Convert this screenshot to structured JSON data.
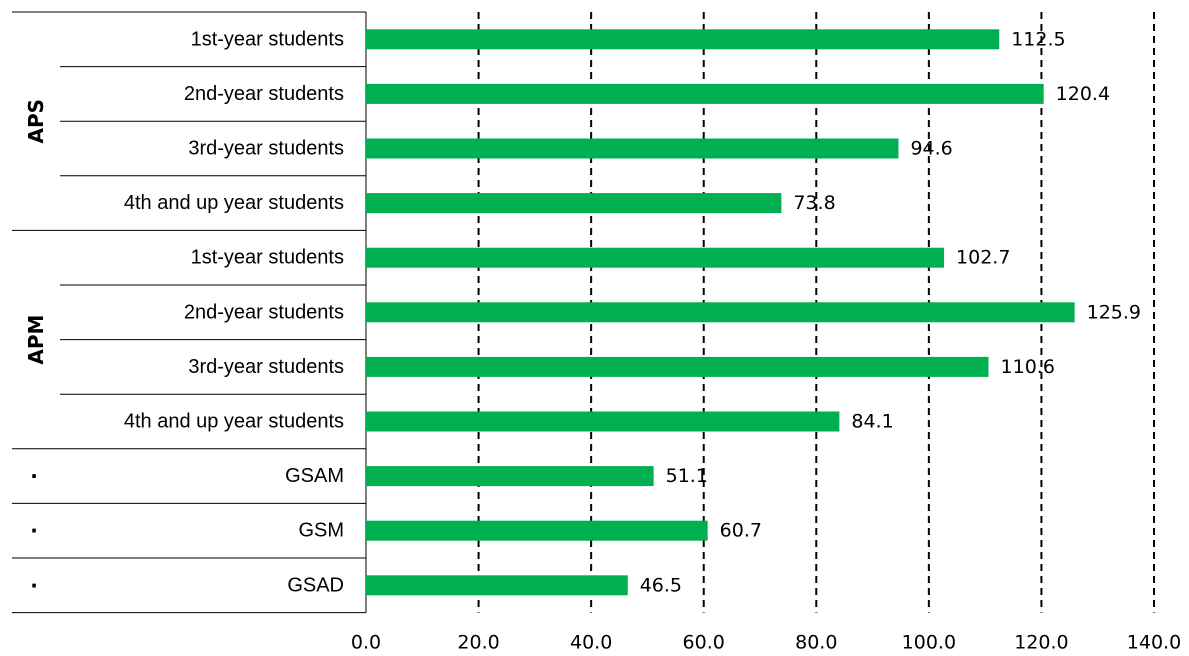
{
  "chart_data": {
    "type": "bar",
    "orientation": "horizontal",
    "groups": [
      {
        "name": "APS",
        "categories": [
          "1st-year students",
          "2nd-year students",
          "3rd-year students",
          "4th and up year students"
        ]
      },
      {
        "name": "APM",
        "categories": [
          "1st-year students",
          "2nd-year students",
          "3rd-year students",
          "4th and up year students"
        ]
      },
      {
        "name": "·",
        "categories": [
          "GSAM"
        ]
      },
      {
        "name": "·",
        "categories": [
          "GSM"
        ]
      },
      {
        "name": "·",
        "categories": [
          "GSAD"
        ]
      }
    ],
    "categories": [
      "1st-year students",
      "2nd-year students",
      "3rd-year students",
      "4th and up year students",
      "1st-year students",
      "2nd-year students",
      "3rd-year students",
      "4th and up year students",
      "GSAM",
      "GSM",
      "GSAD"
    ],
    "values": [
      112.5,
      120.4,
      94.6,
      73.8,
      102.7,
      125.9,
      110.6,
      84.1,
      51.1,
      60.7,
      46.5
    ],
    "value_labels": [
      "112.5",
      "120.4",
      "94.6",
      "73.8",
      "102.7",
      "125.9",
      "110.6",
      "84.1",
      "51.1",
      "60.7",
      "46.5"
    ],
    "xlim": [
      0,
      140
    ],
    "xticks": [
      0,
      20,
      40,
      60,
      80,
      100,
      120,
      140
    ],
    "xtick_labels": [
      "0.0",
      "20.0",
      "40.0",
      "60.0",
      "80.0",
      "100.0",
      "120.0",
      "140.0"
    ],
    "gridlines": "vertical-dashed",
    "bar_color": "#00b050",
    "title": "",
    "xlabel": "",
    "ylabel": ""
  }
}
